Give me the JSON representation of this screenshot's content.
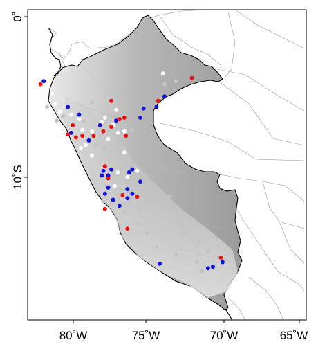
{
  "map": {
    "x_tick_labels": [
      "80˚W",
      "75˚W",
      "70˚W",
      "65˚W"
    ],
    "y_tick_labels": [
      "0˚",
      "10˚S"
    ],
    "x_ticks_lon": [
      -80,
      -75,
      -70,
      -65
    ],
    "y_ticks_lat": [
      0,
      -10
    ],
    "lon_range": [
      -82,
      -64.7
    ],
    "lat_range": [
      1.1,
      -19.3
    ],
    "colors": {
      "frame": "#000000",
      "ocean": "#ffffff",
      "terrain_low": "#9b9b9b",
      "terrain_high": "#e2e2e2",
      "red": "#ee1111",
      "blue": "#1111dd",
      "white": "#ffffff",
      "grey": "#c4c4c4"
    }
  },
  "stations": {
    "red": [
      [
        -81.2,
        -3.8
      ],
      [
        -79.2,
        -6.5
      ],
      [
        -79.0,
        -7.3
      ],
      [
        -78.6,
        -7.2
      ],
      [
        -77.9,
        -7.2
      ],
      [
        -77.3,
        -6.9
      ],
      [
        -76.8,
        -6.6
      ],
      [
        -76.3,
        -6.1
      ],
      [
        -76.0,
        -6.0
      ],
      [
        -75.9,
        -7.2
      ],
      [
        -76.8,
        -4.9
      ],
      [
        -73.9,
        -4.9
      ],
      [
        -71.8,
        -3.4
      ],
      [
        -77.0,
        -10.0
      ],
      [
        -76.1,
        -11.1
      ],
      [
        -77.2,
        -12.0
      ],
      [
        -75.8,
        -13.3
      ],
      [
        -75.2,
        -11.2
      ],
      [
        -70.0,
        -15.2
      ],
      [
        -77.2,
        -9.2
      ],
      [
        -79.5,
        -7.1
      ]
    ],
    "blue": [
      [
        -81.0,
        -3.6
      ],
      [
        -79.5,
        -5.3
      ],
      [
        -78.8,
        -5.8
      ],
      [
        -79.3,
        -7.0
      ],
      [
        -78.2,
        -7.5
      ],
      [
        -77.5,
        -6.5
      ],
      [
        -76.5,
        -6.2
      ],
      [
        -75.0,
        -6.0
      ],
      [
        -74.8,
        -5.4
      ],
      [
        -74.0,
        -5.3
      ],
      [
        -73.5,
        -4.6
      ],
      [
        -77.4,
        -9.8
      ],
      [
        -77.0,
        -10.6
      ],
      [
        -77.2,
        -11.0
      ],
      [
        -76.7,
        -11.4
      ],
      [
        -76.3,
        -11.8
      ],
      [
        -75.8,
        -11.3
      ],
      [
        -75.5,
        -11.0
      ],
      [
        -75.8,
        -10.7
      ],
      [
        -75.7,
        -9.6
      ],
      [
        -76.8,
        -9.4
      ],
      [
        -75.5,
        -9.4
      ],
      [
        -75.0,
        -10.2
      ],
      [
        -73.8,
        -15.6
      ],
      [
        -70.5,
        -15.8
      ],
      [
        -69.9,
        -15.5
      ],
      [
        -70.8,
        -15.9
      ],
      [
        -77.0,
        -9.8
      ],
      [
        -77.3,
        -9.5
      ]
    ],
    "white": [
      [
        -81.0,
        -4.5
      ],
      [
        -80.5,
        -4.4
      ],
      [
        -80.3,
        -5.1
      ],
      [
        -80.0,
        -5.6
      ],
      [
        -79.3,
        -5.8
      ],
      [
        -78.8,
        -6.1
      ],
      [
        -78.6,
        -6.8
      ],
      [
        -78.4,
        -7.8
      ],
      [
        -78.0,
        -6.9
      ],
      [
        -77.4,
        -6.3
      ],
      [
        -77.2,
        -6.0
      ],
      [
        -76.7,
        -6.5
      ],
      [
        -76.4,
        -7.0
      ],
      [
        -76.0,
        -6.9
      ],
      [
        -77.0,
        -7.4
      ],
      [
        -78.7,
        -8.0
      ],
      [
        -78.0,
        -8.5
      ],
      [
        -76.4,
        -9.6
      ],
      [
        -76.0,
        -8.3
      ],
      [
        -75.2,
        -9.5
      ],
      [
        -77.0,
        -10.1
      ],
      [
        -76.6,
        -10.5
      ],
      [
        -75.8,
        -9.9
      ],
      [
        -73.6,
        -3.1
      ],
      [
        -76.5,
        -5.5
      ]
    ],
    "grey": [
      [
        -80.8,
        -5.3
      ],
      [
        -79.8,
        -5.9
      ],
      [
        -78.5,
        -6.2
      ],
      [
        -77.8,
        -7.8
      ],
      [
        -77.2,
        -8.0
      ],
      [
        -76.0,
        -8.0
      ],
      [
        -76.8,
        -8.6
      ],
      [
        -75.7,
        -9.2
      ],
      [
        -75.2,
        -10.0
      ],
      [
        -74.5,
        -10.4
      ],
      [
        -74.0,
        -11.0
      ],
      [
        -73.2,
        -11.2
      ],
      [
        -73.5,
        -11.7
      ],
      [
        -74.5,
        -11.5
      ],
      [
        -75.0,
        -12.0
      ],
      [
        -74.0,
        -12.0
      ],
      [
        -73.0,
        -12.3
      ],
      [
        -72.5,
        -13.2
      ],
      [
        -72.3,
        -13.6
      ],
      [
        -71.4,
        -14.2
      ],
      [
        -70.2,
        -14.4
      ],
      [
        -70.8,
        -14.8
      ],
      [
        -71.2,
        -16.1
      ],
      [
        -74.6,
        -13.6
      ],
      [
        -75.2,
        -13.0
      ],
      [
        -73.5,
        -3.8
      ],
      [
        -72.8,
        -3.6
      ],
      [
        -75.5,
        -6.8
      ],
      [
        -76.5,
        -4.2
      ],
      [
        -78.0,
        -5.0
      ],
      [
        -77.3,
        -11.5
      ],
      [
        -76.0,
        -12.2
      ],
      [
        -71.5,
        -15.5
      ],
      [
        -72.8,
        -15.0
      ],
      [
        -74.0,
        -14.5
      ],
      [
        -76.8,
        -7.8
      ],
      [
        -80.2,
        -6.2
      ]
    ]
  }
}
